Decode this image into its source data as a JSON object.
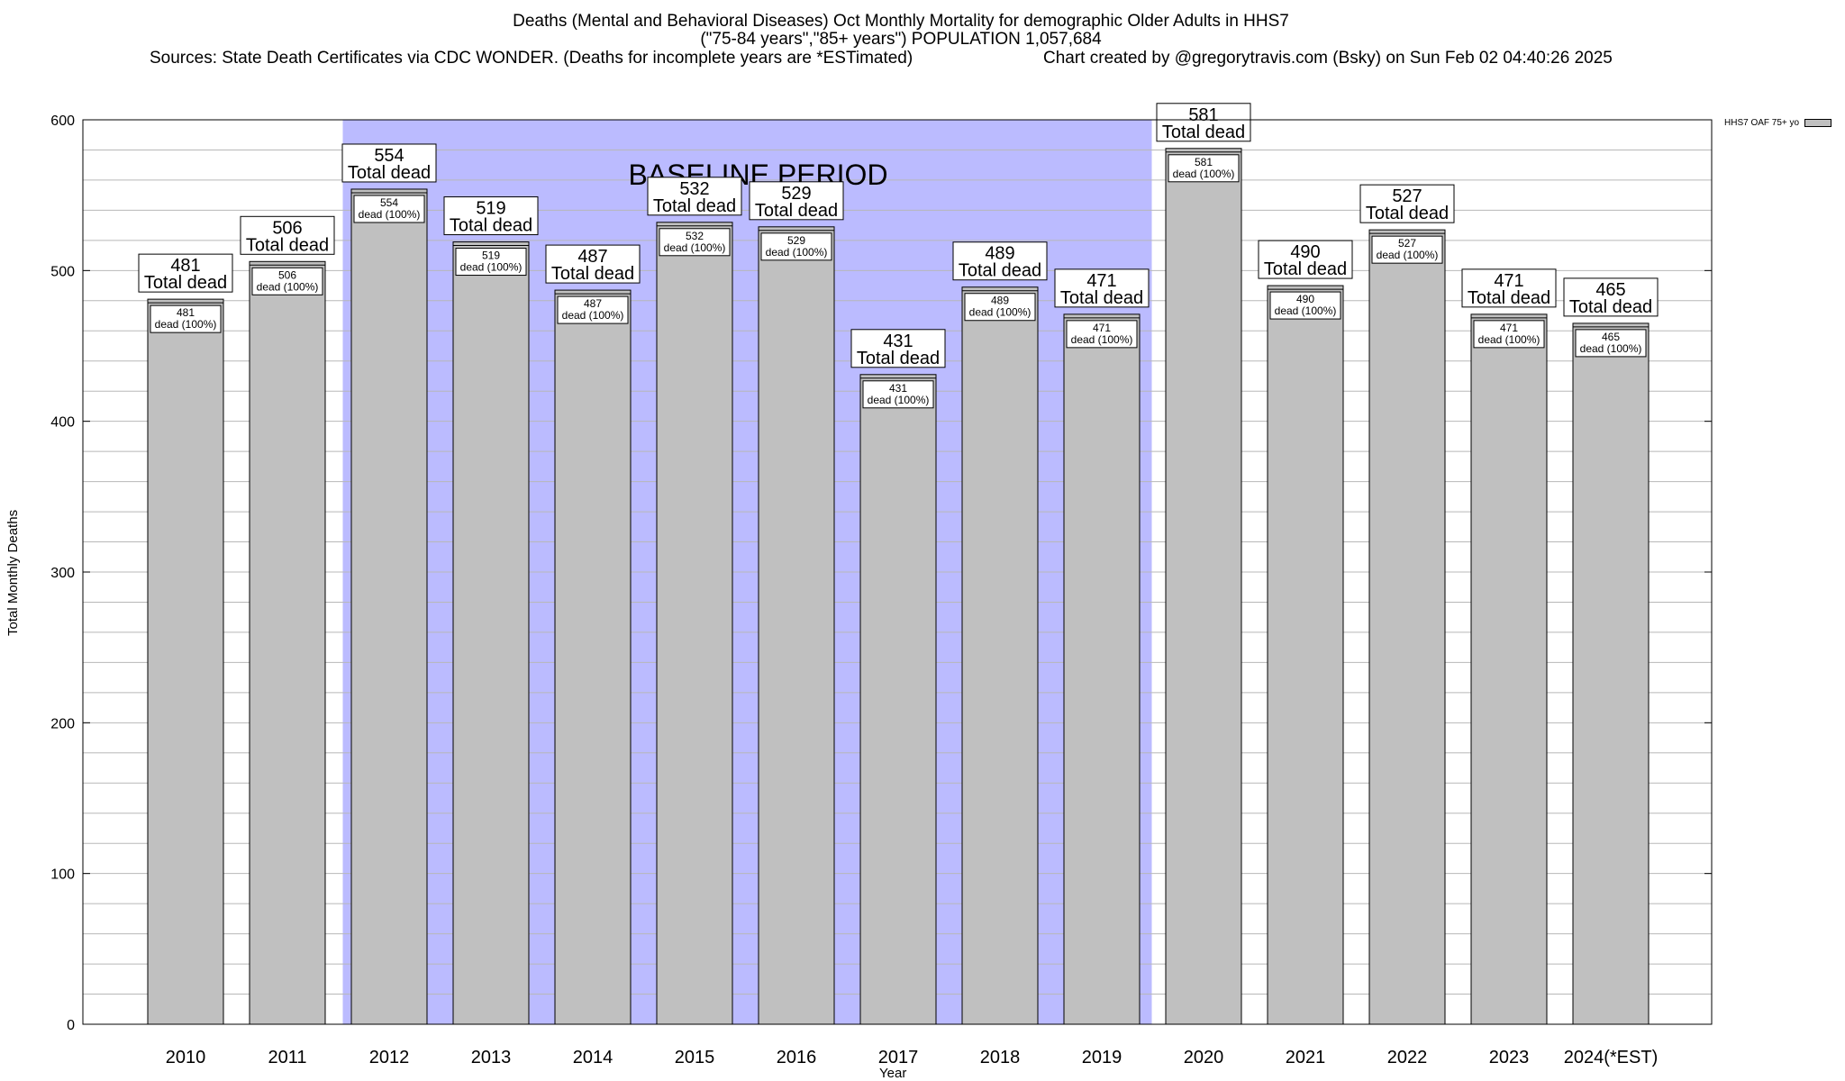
{
  "chart_data": {
    "type": "bar",
    "title": "Deaths (Mental and Behavioral Diseases) Oct Monthly Mortality for demographic Older Adults in HHS7",
    "subtitle": "(\"75-84 years\",\"85+ years\") POPULATION 1,057,684",
    "sources": "Sources: State Death Certificates via CDC WONDER. (Deaths for incomplete years are *ESTimated)",
    "credit": "Chart created by @gregorytravis.com (Bsky) on Sun Feb 02 04:40:26 2025",
    "xlabel": "Year",
    "ylabel": "Total Monthly Deaths",
    "ylim": [
      0,
      600
    ],
    "yticks": [
      0,
      100,
      200,
      300,
      400,
      500,
      600
    ],
    "categories": [
      "2010",
      "2011",
      "2012",
      "2013",
      "2014",
      "2015",
      "2016",
      "2017",
      "2018",
      "2019",
      "2020",
      "2021",
      "2022",
      "2023",
      "2024(*EST)"
    ],
    "series": [
      {
        "name": "HHS7 OAF 75+ yo",
        "color": "#c0c0c0",
        "values": [
          481,
          506,
          554,
          519,
          487,
          532,
          529,
          431,
          489,
          471,
          581,
          490,
          527,
          471,
          465
        ]
      }
    ],
    "top_label_suffix": "Total dead",
    "inner_label_suffix": "dead (100%)",
    "baseline": {
      "label": "BASELINE PERIOD",
      "from": "2012",
      "to": "2019",
      "color": "#bbbbff"
    },
    "grid": true,
    "legend_position": "top-right"
  }
}
